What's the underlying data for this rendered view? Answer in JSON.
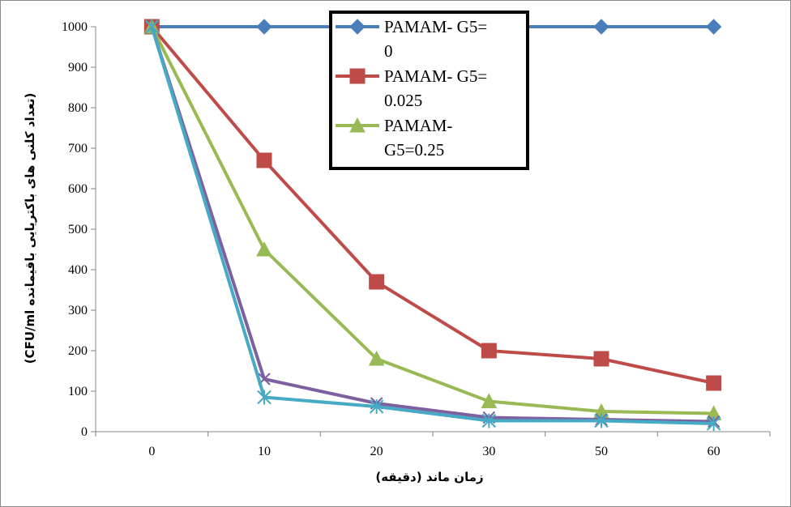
{
  "chart_data": {
    "type": "line",
    "categories": [
      "0",
      "10",
      "20",
      "30",
      "50",
      "60"
    ],
    "series": [
      {
        "name": "PAMAM- G5= 0",
        "legend_lines": [
          "PAMAM- G5=",
          "0"
        ],
        "color": "#4a7ebb",
        "marker": "diamond",
        "values": [
          1000,
          1000,
          1000,
          1000,
          1000,
          1000
        ]
      },
      {
        "name": "PAMAM- G5= 0.025",
        "legend_lines": [
          "PAMAM- G5=",
          "0.025"
        ],
        "color": "#be4b48",
        "marker": "square",
        "values": [
          1000,
          670,
          370,
          200,
          180,
          120
        ]
      },
      {
        "name": "PAMAM- G5=0.25",
        "legend_lines": [
          "PAMAM-",
          "G5=0.25"
        ],
        "color": "#98b954",
        "marker": "triangle",
        "values": [
          1000,
          450,
          180,
          75,
          50,
          45
        ]
      },
      {
        "name": "",
        "color": "#7d60a0",
        "marker": "x",
        "values": [
          1000,
          130,
          70,
          35,
          30,
          25
        ]
      },
      {
        "name": "",
        "color": "#46aac5",
        "marker": "star",
        "values": [
          1000,
          85,
          62,
          27,
          27,
          20
        ]
      }
    ],
    "ylim": [
      0,
      1000
    ],
    "yticks": [
      "0",
      "100",
      "200",
      "300",
      "400",
      "500",
      "600",
      "700",
      "800",
      "900",
      "1000"
    ],
    "xlabel": "زمان ماند (دقیقه)",
    "ylabel": "(تعداد کلنی های باکتریایی باقیمانده CFU/ml)",
    "grid": false,
    "legend_position": "top-center"
  }
}
